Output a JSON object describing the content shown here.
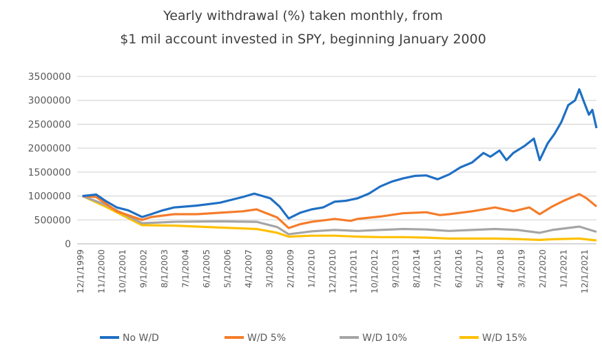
{
  "chart_data": {
    "type": "line",
    "title": [
      "Yearly withdrawal (%) taken monthly, from",
      "$1 mil account invested in SPY, beginning January 2000"
    ],
    "xlabel": "",
    "ylabel": "",
    "ylim": [
      0,
      3500000
    ],
    "yticks": [
      0,
      500000,
      1000000,
      1500000,
      2000000,
      2500000,
      3000000,
      3500000
    ],
    "ytick_labels": [
      "0",
      "500000",
      "1000000",
      "1500000",
      "2000000",
      "2500000",
      "3000000",
      "3500000"
    ],
    "xlim": [
      1999.92,
      2022.43
    ],
    "xtick_labels": [
      "12/1/1999",
      "11/1/2000",
      "10/1/2001",
      "9/1/2002",
      "8/1/2003",
      "7/1/2004",
      "6/1/2005",
      "5/1/2006",
      "4/1/2007",
      "3/1/2008",
      "2/1/2009",
      "1/1/2010",
      "12/1/2010",
      "11/1/2011",
      "10/1/2012",
      "9/1/2013",
      "8/1/2014",
      "7/1/2015",
      "6/1/2016",
      "5/1/2017",
      "4/1/2018",
      "3/1/2019",
      "2/1/2020",
      "1/1/2021",
      "12/1/2021"
    ],
    "grid": true,
    "legend_position": "bottom",
    "series": [
      {
        "name": "No W/D",
        "color": "#1f6fc4",
        "points": [
          [
            2000,
            1000000
          ],
          [
            2000.6,
            1030000
          ],
          [
            2001,
            900000
          ],
          [
            2001.5,
            760000
          ],
          [
            2002,
            700000
          ],
          [
            2002.6,
            560000
          ],
          [
            2003,
            620000
          ],
          [
            2003.5,
            700000
          ],
          [
            2004,
            760000
          ],
          [
            2005,
            800000
          ],
          [
            2006,
            860000
          ],
          [
            2007,
            980000
          ],
          [
            2007.5,
            1050000
          ],
          [
            2008.2,
            950000
          ],
          [
            2008.6,
            780000
          ],
          [
            2009,
            530000
          ],
          [
            2009.5,
            650000
          ],
          [
            2010,
            720000
          ],
          [
            2010.5,
            760000
          ],
          [
            2011,
            880000
          ],
          [
            2011.5,
            900000
          ],
          [
            2012,
            950000
          ],
          [
            2012.5,
            1050000
          ],
          [
            2013,
            1200000
          ],
          [
            2013.5,
            1300000
          ],
          [
            2014,
            1370000
          ],
          [
            2014.5,
            1420000
          ],
          [
            2015,
            1430000
          ],
          [
            2015.5,
            1350000
          ],
          [
            2016,
            1450000
          ],
          [
            2016.5,
            1600000
          ],
          [
            2017,
            1700000
          ],
          [
            2017.5,
            1900000
          ],
          [
            2017.8,
            1820000
          ],
          [
            2018.2,
            1950000
          ],
          [
            2018.5,
            1750000
          ],
          [
            2018.8,
            1900000
          ],
          [
            2019.3,
            2050000
          ],
          [
            2019.7,
            2200000
          ],
          [
            2019.95,
            1750000
          ],
          [
            2020.3,
            2100000
          ],
          [
            2020.6,
            2300000
          ],
          [
            2020.9,
            2550000
          ],
          [
            2021.2,
            2900000
          ],
          [
            2021.5,
            3000000
          ],
          [
            2021.68,
            3230000
          ],
          [
            2021.9,
            2950000
          ],
          [
            2022.1,
            2700000
          ],
          [
            2022.25,
            2800000
          ],
          [
            2022.43,
            2420000
          ]
        ]
      },
      {
        "name": "W/D 5%",
        "color": "#f57c2a",
        "points": [
          [
            2000,
            1000000
          ],
          [
            2000.6,
            980000
          ],
          [
            2001,
            850000
          ],
          [
            2001.5,
            680000
          ],
          [
            2002.6,
            500000
          ],
          [
            2003,
            560000
          ],
          [
            2004,
            620000
          ],
          [
            2005,
            620000
          ],
          [
            2006,
            650000
          ],
          [
            2007,
            680000
          ],
          [
            2007.6,
            720000
          ],
          [
            2008.5,
            550000
          ],
          [
            2009,
            330000
          ],
          [
            2009.5,
            410000
          ],
          [
            2010,
            460000
          ],
          [
            2011,
            520000
          ],
          [
            2011.7,
            480000
          ],
          [
            2012,
            520000
          ],
          [
            2013,
            570000
          ],
          [
            2014,
            640000
          ],
          [
            2015,
            660000
          ],
          [
            2015.6,
            600000
          ],
          [
            2016,
            620000
          ],
          [
            2017,
            680000
          ],
          [
            2018,
            760000
          ],
          [
            2018.8,
            680000
          ],
          [
            2019.5,
            760000
          ],
          [
            2019.95,
            620000
          ],
          [
            2020.5,
            780000
          ],
          [
            2021,
            900000
          ],
          [
            2021.68,
            1040000
          ],
          [
            2022,
            950000
          ],
          [
            2022.43,
            780000
          ]
        ]
      },
      {
        "name": "W/D 10%",
        "color": "#a5a5a5",
        "points": [
          [
            2000,
            1000000
          ],
          [
            2001,
            820000
          ],
          [
            2002.6,
            430000
          ],
          [
            2004,
            460000
          ],
          [
            2006,
            470000
          ],
          [
            2007.6,
            460000
          ],
          [
            2008.5,
            350000
          ],
          [
            2009,
            200000
          ],
          [
            2010,
            260000
          ],
          [
            2011,
            290000
          ],
          [
            2012,
            270000
          ],
          [
            2013,
            290000
          ],
          [
            2014,
            310000
          ],
          [
            2015,
            300000
          ],
          [
            2016,
            270000
          ],
          [
            2017,
            290000
          ],
          [
            2018,
            310000
          ],
          [
            2019,
            290000
          ],
          [
            2019.95,
            230000
          ],
          [
            2020.5,
            290000
          ],
          [
            2021.68,
            360000
          ],
          [
            2022.43,
            250000
          ]
        ]
      },
      {
        "name": "W/D 15%",
        "color": "#ffc000",
        "points": [
          [
            2000,
            1000000
          ],
          [
            2001,
            780000
          ],
          [
            2002.6,
            390000
          ],
          [
            2004,
            380000
          ],
          [
            2006,
            340000
          ],
          [
            2007.6,
            310000
          ],
          [
            2008.5,
            230000
          ],
          [
            2009,
            150000
          ],
          [
            2010,
            170000
          ],
          [
            2011,
            170000
          ],
          [
            2012,
            150000
          ],
          [
            2013,
            140000
          ],
          [
            2014,
            140000
          ],
          [
            2015,
            130000
          ],
          [
            2016,
            110000
          ],
          [
            2017,
            110000
          ],
          [
            2018,
            110000
          ],
          [
            2019,
            100000
          ],
          [
            2019.95,
            80000
          ],
          [
            2020.5,
            95000
          ],
          [
            2021.68,
            110000
          ],
          [
            2022.43,
            70000
          ]
        ]
      }
    ]
  }
}
